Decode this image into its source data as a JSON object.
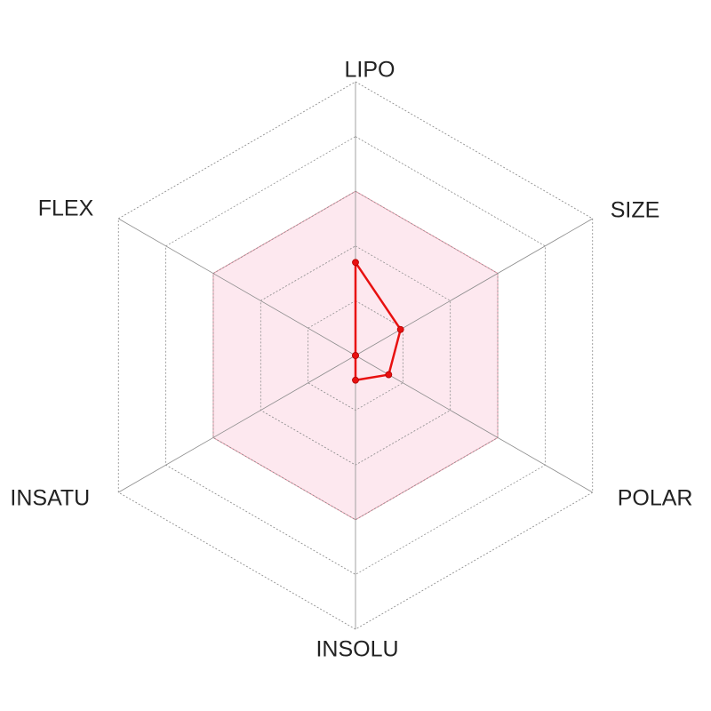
{
  "chart_data": {
    "type": "radar",
    "axes": [
      "LIPO",
      "SIZE",
      "POLAR",
      "INSOLU",
      "INSATU",
      "FLEX"
    ],
    "range": [
      0,
      1
    ],
    "grid_levels": 5,
    "grid": true,
    "reference_band": {
      "lower": 0,
      "upper": 0.6,
      "fill_color": "#fde8ef",
      "border_color": "#e89aaa"
    },
    "series": [
      {
        "values": [
          0.34,
          0.19,
          0.14,
          0.09,
          0.0,
          0.0
        ],
        "color": "#e81010"
      }
    ]
  }
}
